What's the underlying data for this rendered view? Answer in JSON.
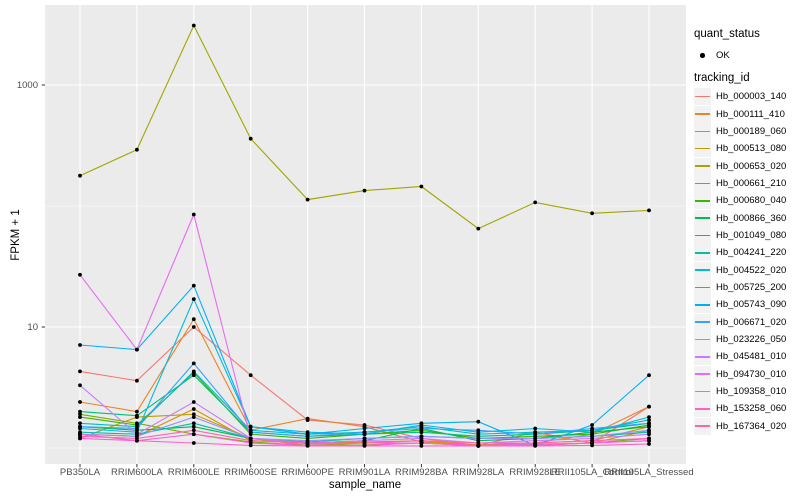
{
  "figure": {
    "background": "#FFFFFF",
    "panel_background": "#EBEBEB",
    "grid_color": "#FFFFFF",
    "tick_mark_color": "#333333",
    "tick_label_color": "#4D4D4D",
    "point_color": "#000000",
    "legend_key_background": "#F2F2F2"
  },
  "axes": {
    "y_title": "FPKM + 1",
    "x_title": "sample_name"
  },
  "legend": {
    "quant_title": "quant_status",
    "quant_items": [
      {
        "label": "OK",
        "marker": "black-point"
      }
    ],
    "tracking_title": "tracking_id"
  },
  "chart_data": {
    "type": "line",
    "title": "",
    "xlabel": "sample_name",
    "ylabel": "FPKM + 1",
    "y_scale": "log10",
    "grid": true,
    "legend_position": "right",
    "y_ticks": [
      {
        "value": 1000,
        "label": "1000"
      },
      {
        "value": 10,
        "label": "10"
      }
    ],
    "y_minor_gridlines": [
      100,
      1
    ],
    "ylim_log10": [
      -0.14,
      3.66
    ],
    "point_marker": {
      "shape": "circle",
      "color": "#000000",
      "radius": 1.9
    },
    "categories": [
      "PB350LA",
      "RRIM600LA",
      "RRIM600LE",
      "RRIM600SE",
      "RRIM600PE",
      "RRIM901LA",
      "RRIM928BA",
      "RRIM928LA",
      "RRIM928LE",
      "RRII105LA_Control",
      "RRII105LA_Stressed"
    ],
    "series": [
      {
        "name": "Hb_000003_140",
        "color": "#F8766D",
        "values": [
          4.3,
          3.6,
          10,
          4.0,
          1.7,
          1.55,
          1.2,
          1.05,
          1.35,
          1.1,
          2.2
        ]
      },
      {
        "name": "Hb_000111_410",
        "color": "#E88526",
        "values": [
          2.4,
          2.0,
          11.6,
          1.4,
          1.75,
          1.5,
          1.12,
          1.06,
          1.1,
          1.3,
          2.2
        ]
      },
      {
        "name": "Hb_000189_060",
        "color": "#D89000",
        "values": [
          1.3,
          1.25,
          2.1,
          1.15,
          1.1,
          1.12,
          1.15,
          1.06,
          1.1,
          1.15,
          1.5
        ]
      },
      {
        "name": "Hb_000513_080",
        "color": "#C09B00",
        "values": [
          1.2,
          1.8,
          1.9,
          1.2,
          1.05,
          1.1,
          1.1,
          1.04,
          1.06,
          1.1,
          1.4
        ]
      },
      {
        "name": "Hb_000653_020",
        "color": "#A3A500",
        "values": [
          178,
          292,
          3100,
          360,
          113,
          134,
          145,
          65,
          107,
          87,
          92
        ]
      },
      {
        "name": "Hb_000661_210",
        "color": "#7CAE00",
        "values": [
          1.9,
          1.6,
          1.3,
          1.12,
          1.05,
          1.06,
          1.1,
          1.04,
          1.05,
          1.1,
          1.2
        ]
      },
      {
        "name": "Hb_000680_040",
        "color": "#39B600",
        "values": [
          1.8,
          1.55,
          4.2,
          1.3,
          1.2,
          1.3,
          1.4,
          1.2,
          1.25,
          1.3,
          1.55
        ]
      },
      {
        "name": "Hb_000866_360",
        "color": "#00BB4E",
        "values": [
          1.5,
          1.4,
          1.5,
          1.2,
          1.1,
          1.15,
          1.45,
          1.15,
          1.2,
          1.35,
          1.5
        ]
      },
      {
        "name": "Hb_001049_080",
        "color": "#00BF7D",
        "values": [
          2.0,
          1.85,
          4.0,
          1.35,
          1.25,
          1.3,
          1.35,
          1.25,
          1.3,
          1.4,
          1.6
        ]
      },
      {
        "name": "Hb_004241_220",
        "color": "#00C1A3",
        "values": [
          1.35,
          1.3,
          1.6,
          1.2,
          1.12,
          1.2,
          1.25,
          1.2,
          1.2,
          1.25,
          1.35
        ]
      },
      {
        "name": "Hb_004522_020",
        "color": "#00BFC4",
        "values": [
          1.6,
          1.5,
          4.3,
          1.4,
          1.3,
          1.35,
          1.5,
          1.3,
          1.35,
          1.4,
          1.7
        ]
      },
      {
        "name": "Hb_005725_200",
        "color": "#00BAE0",
        "values": [
          1.45,
          1.35,
          17,
          1.5,
          1.35,
          1.3,
          1.55,
          1.35,
          1.45,
          1.35,
          1.8
        ]
      },
      {
        "name": "Hb_005743_090",
        "color": "#00B0F6",
        "values": [
          7.1,
          6.5,
          22,
          1.5,
          1.3,
          1.45,
          1.6,
          1.65,
          1.05,
          1.55,
          4.0
        ]
      },
      {
        "name": "Hb_006671_020",
        "color": "#35A2FF",
        "values": [
          1.5,
          1.45,
          5.0,
          1.35,
          1.25,
          1.35,
          1.45,
          1.4,
          1.3,
          1.45,
          1.6
        ]
      },
      {
        "name": "Hb_023226_050",
        "color": "#9590FF",
        "values": [
          1.3,
          1.25,
          1.8,
          1.2,
          1.15,
          1.2,
          1.25,
          1.2,
          1.2,
          1.25,
          1.4
        ]
      },
      {
        "name": "Hb_045481_010",
        "color": "#C77CFF",
        "values": [
          3.3,
          1.3,
          2.4,
          1.2,
          1.1,
          1.15,
          1.2,
          1.1,
          1.15,
          1.2,
          1.3
        ]
      },
      {
        "name": "Hb_094730_010",
        "color": "#E76BF3",
        "values": [
          27,
          6.5,
          85,
          1.2,
          1.08,
          1.1,
          1.1,
          1.05,
          1.08,
          1.1,
          1.15
        ]
      },
      {
        "name": "Hb_109358_010",
        "color": "#FA62DB",
        "values": [
          1.2,
          1.15,
          1.3,
          1.1,
          1.05,
          1.05,
          1.1,
          1.05,
          1.05,
          1.1,
          1.15
        ]
      },
      {
        "name": "Hb_153258_060",
        "color": "#FF61C9",
        "values": [
          1.3,
          1.15,
          1.1,
          1.05,
          1.04,
          1.04,
          1.04,
          1.04,
          1.04,
          1.05,
          1.08
        ]
      },
      {
        "name": "Hb_167364_020",
        "color": "#FF65AC",
        "values": [
          1.25,
          1.2,
          1.4,
          1.15,
          1.1,
          1.1,
          1.15,
          1.1,
          1.1,
          1.15,
          1.2
        ]
      }
    ]
  }
}
